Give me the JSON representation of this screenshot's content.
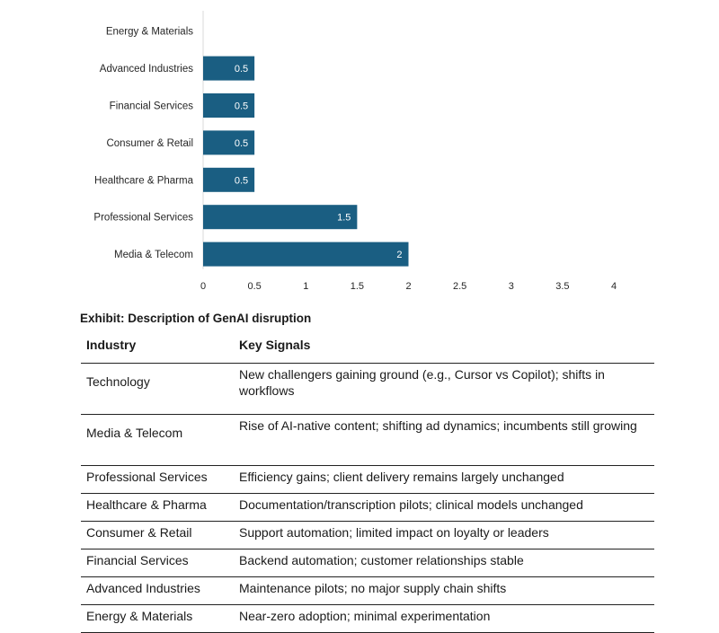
{
  "chart_data": {
    "type": "bar",
    "orientation": "horizontal",
    "categories": [
      "Energy & Materials",
      "Advanced Industries",
      "Financial Services",
      "Consumer & Retail",
      "Healthcare & Pharma",
      "Professional Services",
      "Media & Telecom"
    ],
    "values": [
      0,
      0.5,
      0.5,
      0.5,
      0.5,
      1.5,
      2
    ],
    "data_labels": [
      "",
      "0.5",
      "0.5",
      "0.5",
      "0.5",
      "1.5",
      "2"
    ],
    "xlim": [
      0,
      4
    ],
    "xticks": [
      "0",
      "0.5",
      "1",
      "1.5",
      "2",
      "2.5",
      "3",
      "3.5",
      "4"
    ],
    "bar_color": "#1a5e82",
    "label_color": "#ffffff",
    "grid": false,
    "legend": "none"
  },
  "exhibit": {
    "title": "Exhibit: Description of GenAI disruption",
    "headers": [
      "Industry",
      "Key Signals"
    ],
    "rows": [
      {
        "industry": "Technology",
        "signals": "New challengers gaining ground (e.g., Cursor vs Copilot); shifts in workflows"
      },
      {
        "industry": "Media & Telecom",
        "signals": "Rise of AI-native content; shifting ad dynamics; incumbents still growing"
      },
      {
        "industry": "Professional Services",
        "signals": "Efficiency gains; client delivery remains largely unchanged"
      },
      {
        "industry": "Healthcare & Pharma",
        "signals": "Documentation/transcription pilots; clinical models unchanged"
      },
      {
        "industry": "Consumer & Retail",
        "signals": "Support automation; limited impact on loyalty or leaders"
      },
      {
        "industry": "Financial Services",
        "signals": "Backend automation; customer relationships stable"
      },
      {
        "industry": "Advanced Industries",
        "signals": "Maintenance pilots; no major supply chain shifts"
      },
      {
        "industry": "Energy & Materials",
        "signals": "Near-zero adoption; minimal experimentation"
      }
    ]
  }
}
